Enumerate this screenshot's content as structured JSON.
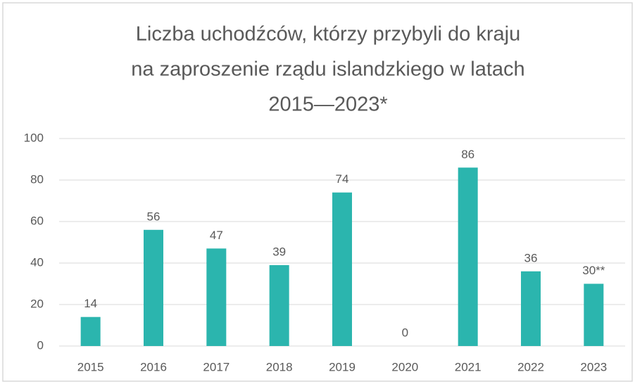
{
  "chart_data": {
    "type": "bar",
    "title": [
      "Liczba uchodźców, którzy przybyli do kraju",
      "na zaproszenie rządu islandzkiego w latach",
      "2015—2023*"
    ],
    "categories": [
      "2015",
      "2016",
      "2017",
      "2018",
      "2019",
      "2020",
      "2021",
      "2022",
      "2023"
    ],
    "values": [
      14,
      56,
      47,
      39,
      74,
      0,
      86,
      36,
      30
    ],
    "value_labels": [
      "14",
      "56",
      "47",
      "39",
      "74",
      "0",
      "86",
      "36",
      "30**"
    ],
    "color": "#2bb5ae",
    "ylim": [
      0,
      100
    ],
    "yticks": [
      0,
      20,
      40,
      60,
      80,
      100
    ],
    "grid": true
  }
}
